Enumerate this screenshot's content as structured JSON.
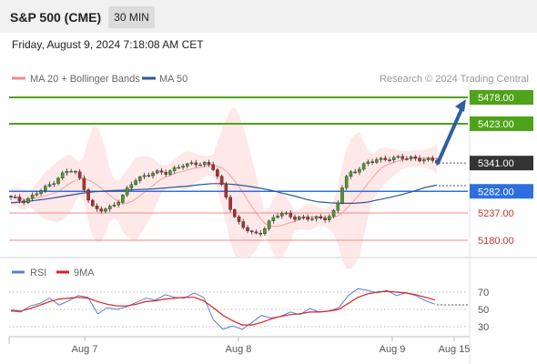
{
  "header": {
    "instrument": "S&P 500 (CME)",
    "timeframe": "30 MIN"
  },
  "timestamp": "Friday, August 9, 2024 7:18:08 AM CET",
  "legend": {
    "items": [
      {
        "label": "MA 20 + Bollinger Bands",
        "color": "#f28b8b"
      },
      {
        "label": "MA 50",
        "color": "#2f5597"
      }
    ],
    "credit": "Research © 2024 Trading Central"
  },
  "indicator_legend": {
    "items": [
      {
        "label": "RSI",
        "color": "#5b7fd6"
      },
      {
        "label": "9MA",
        "color": "#e02020"
      }
    ]
  },
  "colors": {
    "target": "#4fa31a",
    "pivot": "#2e6fe0",
    "support": "#f08a8a",
    "last": "#333333",
    "arrow": "#2f5f9e",
    "up": "#4a9a2a",
    "down": "#b32b2b"
  },
  "chart_data": [
    {
      "type": "candlestick",
      "timeframe": "30 MIN",
      "ylim": [
        5165,
        5500
      ],
      "x_ticks": [
        "Aug 7",
        "Aug 8",
        "Aug 9",
        "Aug 15"
      ],
      "levels": [
        {
          "value": 5478.0,
          "label": "5478.00",
          "kind": "target"
        },
        {
          "value": 5423.0,
          "label": "5423.00",
          "kind": "target"
        },
        {
          "value": 5341.0,
          "label": "5341.00",
          "kind": "last"
        },
        {
          "value": 5282.0,
          "label": "5282.00",
          "kind": "pivot"
        },
        {
          "value": 5237.0,
          "label": "5237.00",
          "kind": "support"
        },
        {
          "value": 5180.0,
          "label": "5180.00",
          "kind": "support"
        }
      ],
      "close_path": [
        5268,
        5265,
        5262,
        5268,
        5275,
        5283,
        5290,
        5300,
        5312,
        5320,
        5326,
        5320,
        5300,
        5270,
        5245,
        5240,
        5245,
        5250,
        5262,
        5275,
        5290,
        5305,
        5312,
        5318,
        5322,
        5320,
        5318,
        5326,
        5333,
        5338,
        5336,
        5338,
        5340,
        5342,
        5335,
        5310,
        5280,
        5250,
        5225,
        5212,
        5200,
        5190,
        5195,
        5208,
        5225,
        5232,
        5234,
        5232,
        5228,
        5228,
        5225,
        5224,
        5226,
        5227,
        5232,
        5245,
        5290,
        5318,
        5325,
        5332,
        5340,
        5343,
        5348,
        5350,
        5352,
        5351,
        5350,
        5351,
        5353,
        5350,
        5348,
        5346,
        5341
      ],
      "ma50": [
        5258,
        5260,
        5263,
        5266,
        5270,
        5274,
        5278,
        5281,
        5283,
        5284,
        5285,
        5286,
        5287,
        5289,
        5291,
        5293,
        5296,
        5298,
        5298,
        5296,
        5293,
        5289,
        5284,
        5278,
        5272,
        5265,
        5260,
        5258,
        5257,
        5257,
        5259,
        5264,
        5269,
        5275,
        5282,
        5290,
        5295
      ],
      "projection": {
        "from": 5341.0,
        "to": 5478.0
      },
      "last_value": 5341.0
    },
    {
      "type": "line",
      "name": "RSI",
      "ylim": [
        20,
        80
      ],
      "y_ticks": [
        70,
        50,
        30
      ],
      "series": [
        {
          "name": "RSI",
          "values": [
            48,
            47,
            54,
            57,
            63,
            55,
            60,
            66,
            64,
            45,
            52,
            50,
            53,
            58,
            63,
            61,
            67,
            64,
            63,
            69,
            64,
            38,
            27,
            31,
            27,
            35,
            43,
            40,
            42,
            47,
            44,
            51,
            47,
            48,
            52,
            66,
            74,
            72,
            69,
            72,
            66,
            69,
            66,
            60,
            56
          ]
        },
        {
          "name": "9MA",
          "values": [
            49,
            48,
            51,
            55,
            59,
            62,
            63,
            64,
            63,
            59,
            56,
            54,
            54,
            56,
            59,
            60,
            62,
            63,
            64,
            64,
            60,
            52,
            43,
            37,
            32,
            32,
            35,
            39,
            42,
            44,
            45,
            47,
            47,
            48,
            50,
            57,
            64,
            68,
            70,
            71,
            70,
            69,
            67,
            64,
            61
          ]
        }
      ]
    }
  ]
}
